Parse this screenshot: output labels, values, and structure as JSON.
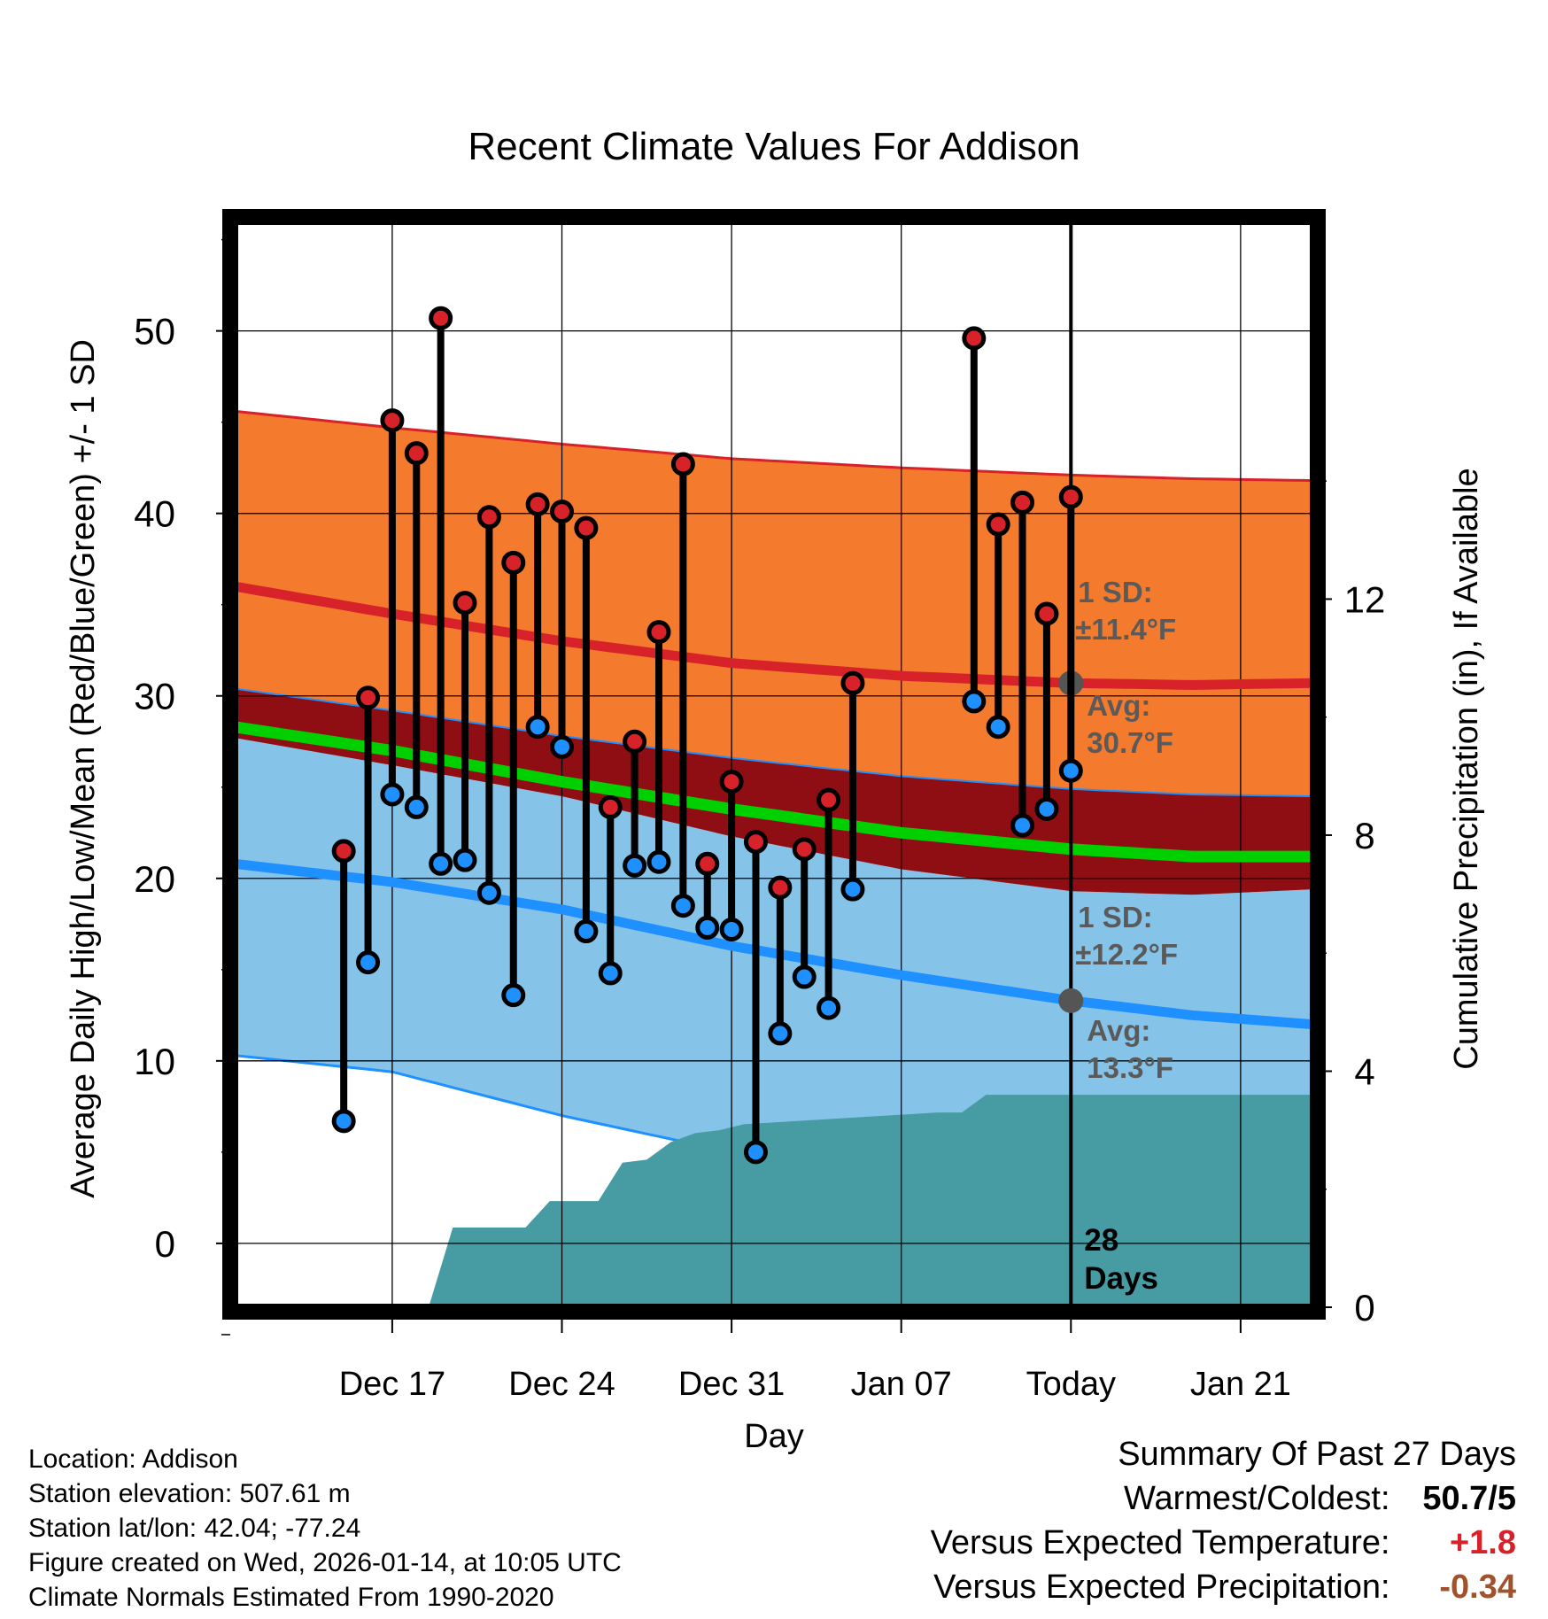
{
  "title": "Recent Climate Values For Addison",
  "colors": {
    "high": "#d7222a",
    "low": "#1e90ff",
    "mean": "#00d000",
    "high_band": "#f47a2e",
    "low_band": "#86c3e8",
    "overlap_band": "#8f0e13",
    "precip": "#479ba3",
    "label_gray": "#5a5a5a",
    "dev_temp": "#d7222a",
    "dev_precip": "#a0522d"
  },
  "chart_data": {
    "type": "line",
    "title": "Recent Climate Values For Addison",
    "xlabel": "Day",
    "ylabel": "Average Daily High/Low/Mean (Red/Blue/Green) +/- 1 SD",
    "y2label": "Cumulative Precipitation (in), If Available",
    "ylim": [
      -3.5,
      56
    ],
    "y_ticks": [
      0,
      10,
      20,
      30,
      40,
      50
    ],
    "y2lim": [
      0,
      18.4
    ],
    "y2_ticks": [
      0,
      4,
      8,
      12
    ],
    "xlim_days": [
      -34.5,
      10
    ],
    "x_ticks": [
      {
        "day": -28,
        "label": "Dec 17"
      },
      {
        "day": -21,
        "label": "Dec 24"
      },
      {
        "day": -14,
        "label": "Dec 31"
      },
      {
        "day": -7,
        "label": "Jan 07"
      },
      {
        "day": 0,
        "label": "Today"
      },
      {
        "day": 7,
        "label": "Jan 21"
      }
    ],
    "days_ago_start": -30,
    "observations": [
      {
        "high": 21.5,
        "low": 6.7
      },
      {
        "high": 29.9,
        "low": 15.4
      },
      {
        "high": 45.1,
        "low": 24.6
      },
      {
        "high": 43.3,
        "low": 23.9
      },
      {
        "high": 50.7,
        "low": 20.8
      },
      {
        "high": 35.1,
        "low": 21.0
      },
      {
        "high": 39.8,
        "low": 19.2
      },
      {
        "high": 37.3,
        "low": 13.6
      },
      {
        "high": 40.5,
        "low": 28.3
      },
      {
        "high": 40.1,
        "low": 27.2
      },
      {
        "high": 39.2,
        "low": 17.1
      },
      {
        "high": 23.9,
        "low": 14.8
      },
      {
        "high": 27.5,
        "low": 20.7
      },
      {
        "high": 33.5,
        "low": 20.9
      },
      {
        "high": 42.7,
        "low": 18.5
      },
      {
        "high": 20.8,
        "low": 17.3
      },
      {
        "high": 25.3,
        "low": 17.2
      },
      {
        "high": 22.0,
        "low": 5.0
      },
      {
        "high": 19.5,
        "low": 11.5
      },
      {
        "high": 21.6,
        "low": 14.6
      },
      {
        "high": 24.3,
        "low": 12.9
      },
      {
        "high": 30.7,
        "low": 19.4
      },
      null,
      null,
      null,
      null,
      {
        "high": 49.6,
        "low": 29.7
      },
      {
        "high": 39.4,
        "low": 28.3
      },
      {
        "high": 40.6,
        "low": 22.9
      },
      {
        "high": 34.5,
        "low": 23.8
      },
      {
        "high": 40.9,
        "low": 25.9
      }
    ],
    "normals_days": [
      -34.5,
      -28,
      -21,
      -14,
      -7,
      0,
      5,
      10
    ],
    "normal_high": [
      36.0,
      34.5,
      33.0,
      31.8,
      31.1,
      30.7,
      30.6,
      30.7
    ],
    "normal_high_plus_sd": [
      45.6,
      44.7,
      43.8,
      43.0,
      42.5,
      42.1,
      41.9,
      41.8
    ],
    "normal_high_minus_sd": [
      30.4,
      29.2,
      27.8,
      26.6,
      25.6,
      24.9,
      24.6,
      24.5
    ],
    "normal_low": [
      20.8,
      19.8,
      18.3,
      16.3,
      14.7,
      13.3,
      12.5,
      12.0
    ],
    "normal_low_plus_sd": [
      27.7,
      26.2,
      24.5,
      22.3,
      20.5,
      19.3,
      19.1,
      19.4
    ],
    "normal_low_minus_sd": [
      10.3,
      9.4,
      7.0,
      5.0,
      3.3,
      1.6,
      0.9,
      0.5
    ],
    "normal_mean": [
      28.3,
      27.0,
      25.3,
      23.8,
      22.5,
      21.6,
      21.2,
      21.2
    ],
    "precip_cumulative": [
      {
        "day": -30.5,
        "value": 0
      },
      {
        "day": -26.5,
        "value": 0
      },
      {
        "day": -25.5,
        "value": 1.35
      },
      {
        "day": -22.5,
        "value": 1.35
      },
      {
        "day": -21.5,
        "value": 1.8
      },
      {
        "day": -19.5,
        "value": 1.8
      },
      {
        "day": -18.5,
        "value": 2.45
      },
      {
        "day": -17.5,
        "value": 2.5
      },
      {
        "day": -16.5,
        "value": 2.8
      },
      {
        "day": -15.5,
        "value": 2.95
      },
      {
        "day": -14.5,
        "value": 3.0
      },
      {
        "day": -13.5,
        "value": 3.1
      },
      {
        "day": -9.5,
        "value": 3.2
      },
      {
        "day": -5.5,
        "value": 3.3
      },
      {
        "day": -4.5,
        "value": 3.3
      },
      {
        "day": -3.5,
        "value": 3.6
      },
      {
        "day": 10,
        "value": 3.6
      }
    ],
    "annotations": {
      "high_sd_label_1": "1 SD:",
      "high_sd_label_2": "±11.4°F",
      "high_avg_label_1": "Avg:",
      "high_avg_label_2": "30.7°F",
      "low_sd_label_1": "1 SD:",
      "low_sd_label_2": "±12.2°F",
      "low_avg_label_1": "Avg:",
      "low_avg_label_2": "13.3°F",
      "precip_days_1": "28",
      "precip_days_2": "Days"
    }
  },
  "footer": {
    "location": "Location: Addison",
    "elevation": "Station elevation: 507.61 m",
    "latlon": "Station lat/lon: 42.04; -77.24",
    "created": "Figure created on Wed, 2026-01-14, at 10:05 UTC",
    "normals": "Climate Normals Estimated From 1990-2020"
  },
  "summary": {
    "title": "Summary Of Past 27 Days",
    "warm_cold_label": "Warmest/Coldest:",
    "warm_cold_value": "50.7/5",
    "temp_label": "Versus Expected Temperature:",
    "temp_value": "+1.8",
    "precip_label": "Versus Expected Precipitation:",
    "precip_value": "-0.34"
  }
}
